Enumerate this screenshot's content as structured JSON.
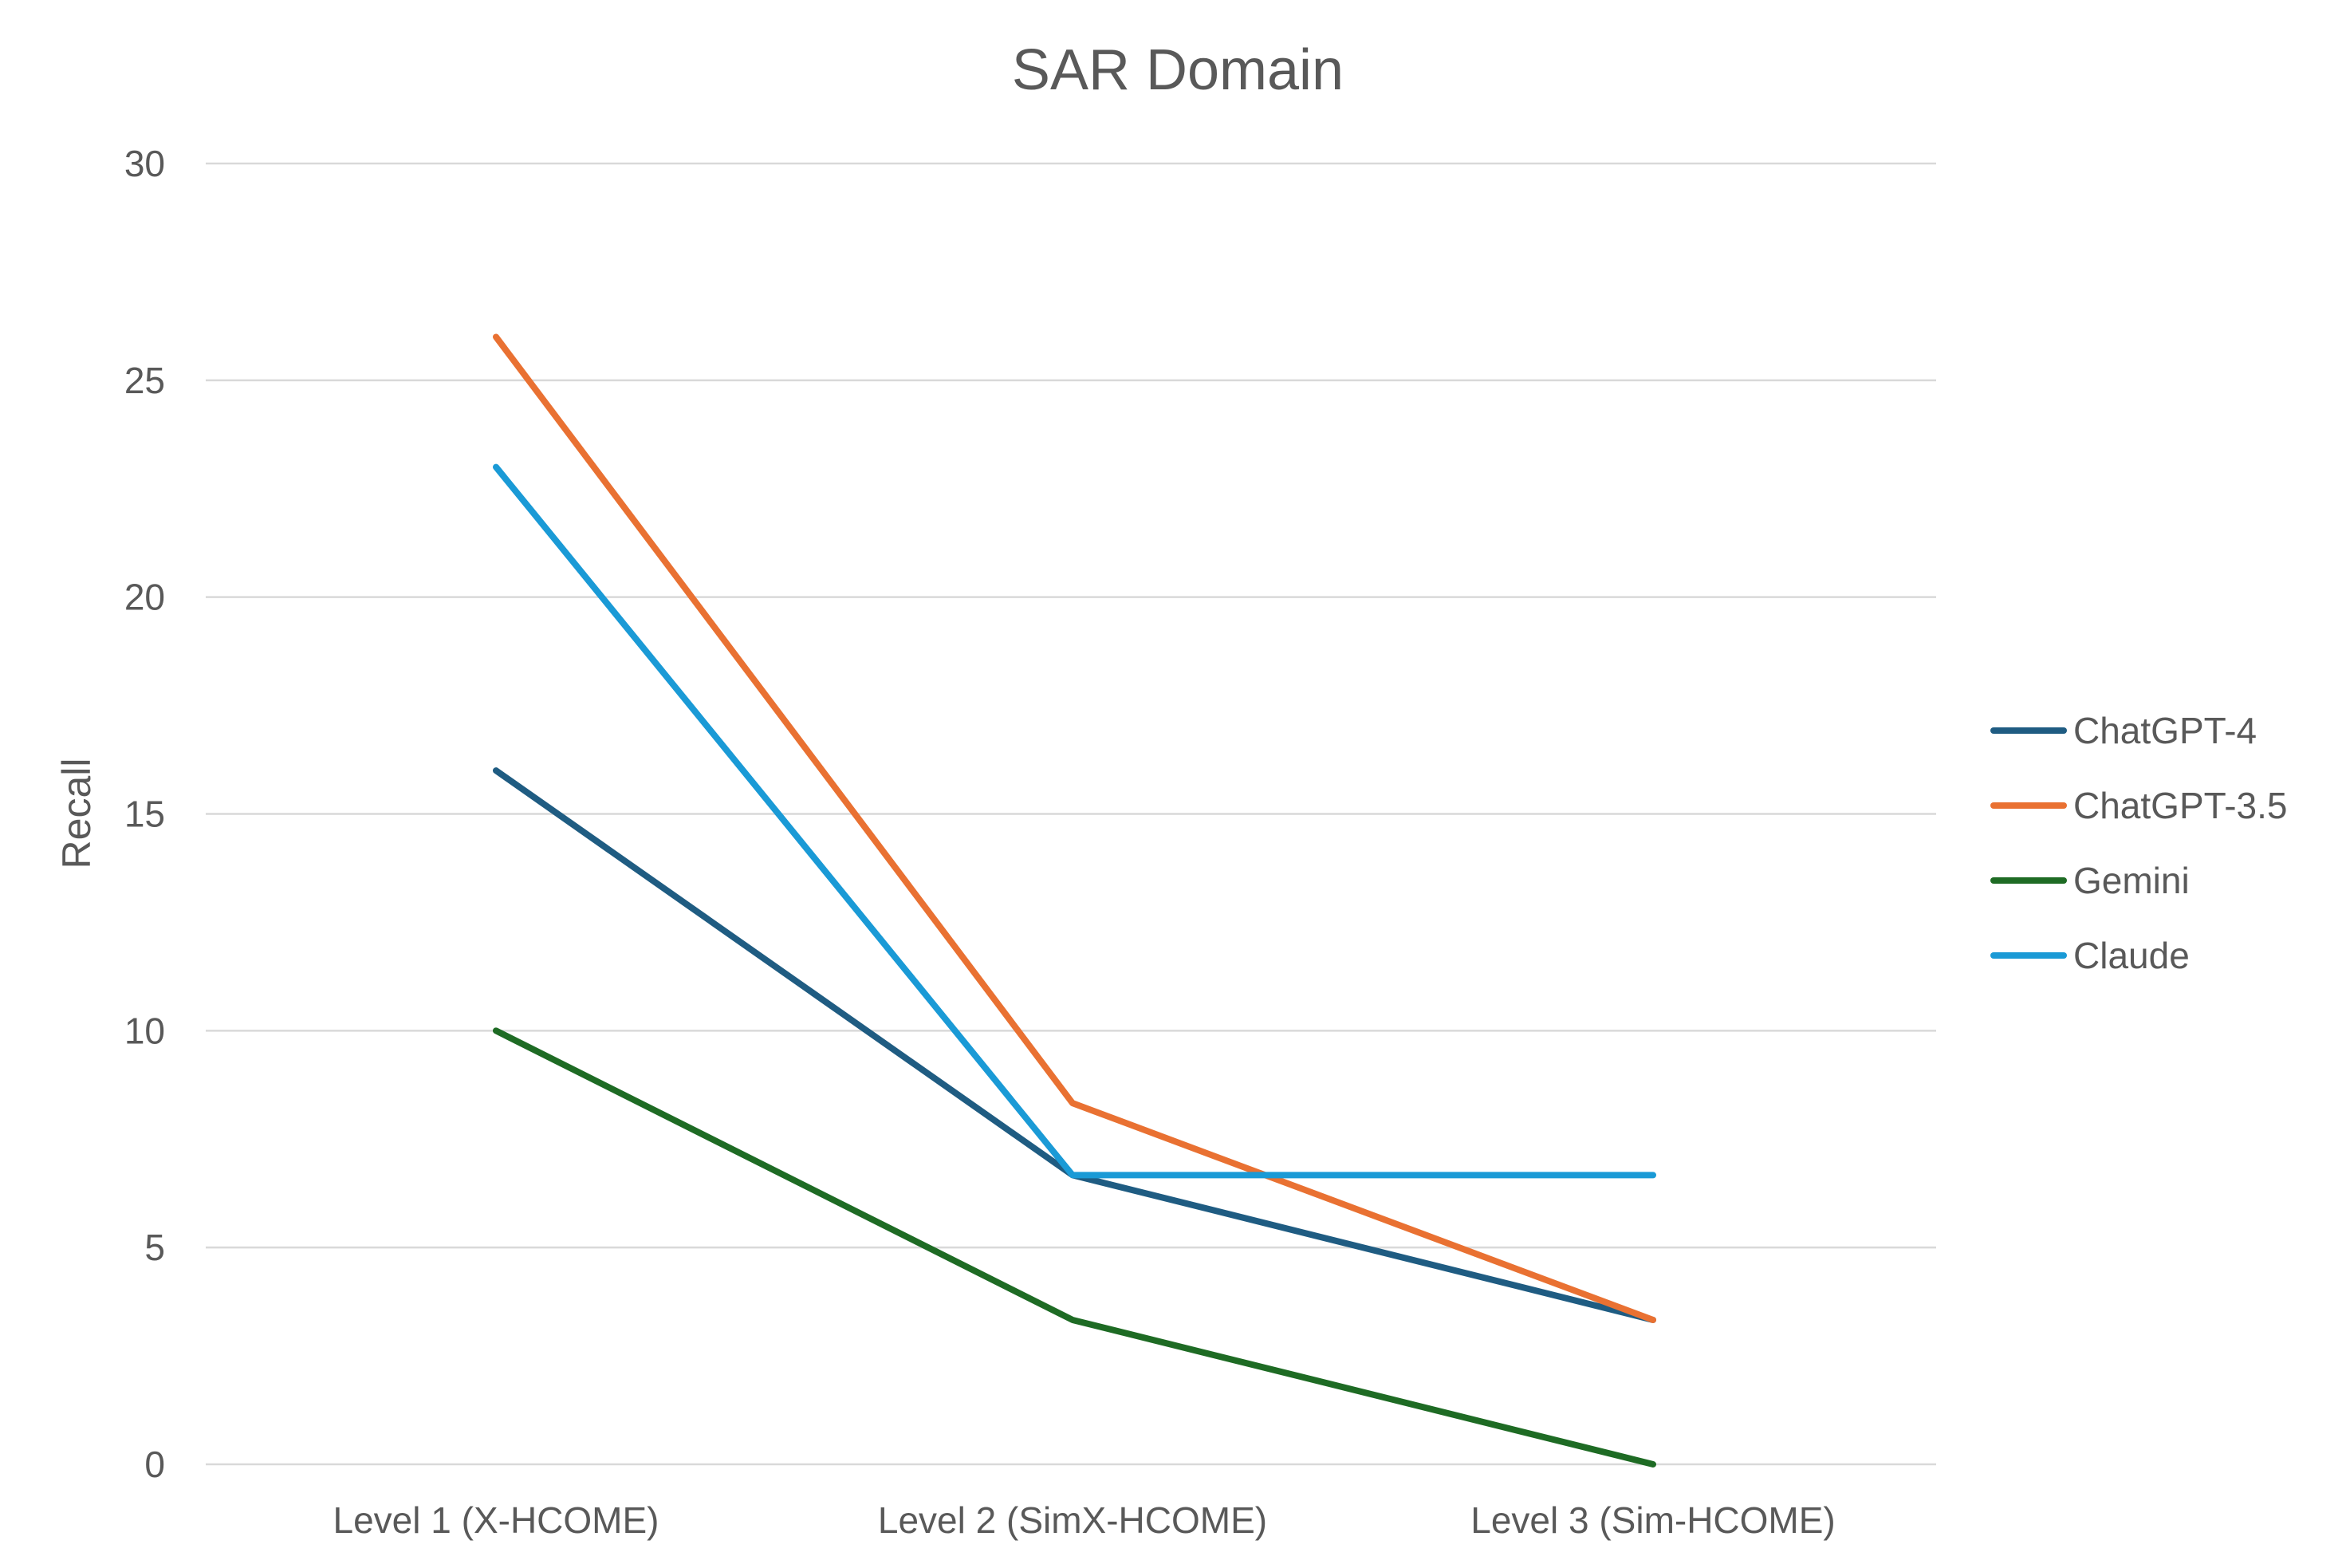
{
  "chart_data": {
    "type": "line",
    "title": "SAR Domain",
    "xlabel": "",
    "ylabel": "Recall",
    "categories": [
      "Level 1 (X-HCOME)",
      "Level 2 (SimX-HCOME)",
      "Level 3 (Sim-HCOME)"
    ],
    "ylim": [
      0,
      30
    ],
    "yticks": [
      0,
      5,
      10,
      15,
      20,
      25,
      30
    ],
    "grid": true,
    "legend_position": "right",
    "series": [
      {
        "name": "ChatGPT-4",
        "color": "#1F5C82",
        "values": [
          16,
          6.67,
          3.33
        ]
      },
      {
        "name": "ChatGPT-3.5",
        "color": "#E97132",
        "values": [
          26,
          8.33,
          3.33
        ]
      },
      {
        "name": "Gemini",
        "color": "#1E6B24",
        "values": [
          10,
          3.33,
          0
        ]
      },
      {
        "name": "Claude",
        "color": "#1A9AD6",
        "values": [
          23,
          6.67,
          6.67
        ]
      }
    ]
  }
}
